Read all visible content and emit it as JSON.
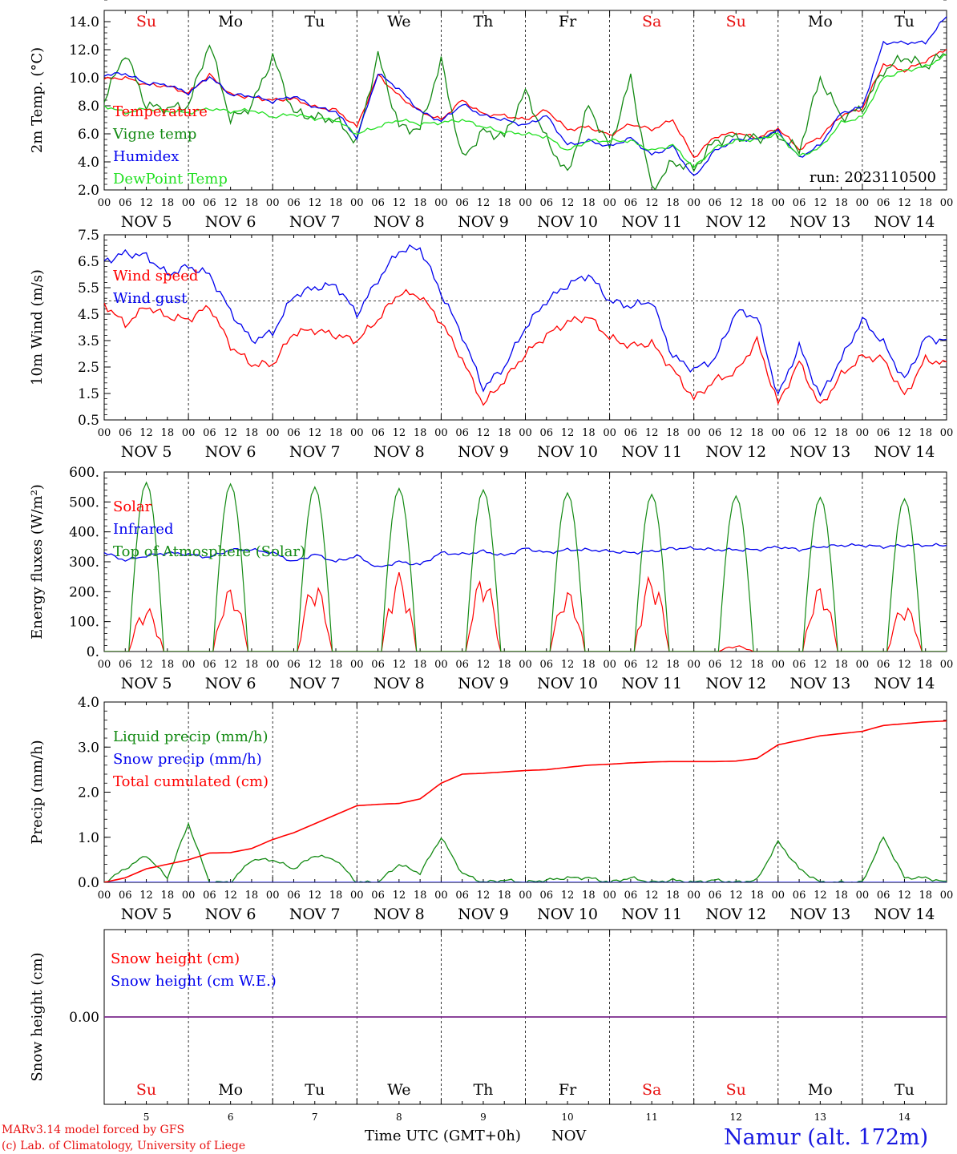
{
  "run_label": "run: 2023110500",
  "station": "Namur (alt. 172m)",
  "credit_line1": "MARv3.14 model forced by GFS",
  "credit_line2": "(c) Lab. of Climatology, University of Liege",
  "x_axis_label": "Time UTC (GMT+0h)",
  "x_axis_month": "NOV",
  "hour_ticks": [
    "00",
    "06",
    "12",
    "18"
  ],
  "final_hour_tick": "00",
  "day_numbers": [
    "5",
    "6",
    "7",
    "8",
    "9",
    "10",
    "11",
    "12",
    "13",
    "14"
  ],
  "day_names": [
    "Su",
    "Mo",
    "Tu",
    "We",
    "Th",
    "Fr",
    "Sa",
    "Su",
    "Mo",
    "Tu"
  ],
  "weekend_flags": [
    true,
    false,
    false,
    false,
    false,
    false,
    true,
    true,
    false,
    false
  ],
  "colors": {
    "weekend": "#e81010",
    "weekday": "#000000",
    "temperature": "#ff0000",
    "vigne": "#138a13",
    "humidex": "#0000ee",
    "dewpoint": "#22e022",
    "station": "#1818e0",
    "snow_line": "#7b2a8c"
  },
  "chart_data": [
    {
      "type": "line",
      "ylabel": "2m Temp. (°C)",
      "ylim": [
        2,
        14.8
      ],
      "yticks": [
        "2.0",
        "4.0",
        "6.0",
        "8.0",
        "10.0",
        "12.0",
        "14.0"
      ],
      "x": "hours since Nov 5 00 UTC, one point every 6 h",
      "series": [
        {
          "name": "Temperature",
          "color": "#ff0000",
          "values": [
            9.9,
            10.0,
            9.5,
            9.4,
            8.9,
            10.2,
            8.8,
            8.6,
            8.4,
            8.5,
            7.9,
            7.7,
            6.5,
            10.2,
            8.7,
            7.6,
            7.0,
            8.4,
            7.4,
            7.3,
            7.0,
            7.7,
            6.3,
            6.5,
            5.9,
            6.7,
            6.3,
            7.0,
            4.3,
            5.8,
            6.1,
            5.7,
            6.4,
            4.9,
            5.8,
            7.3,
            7.8,
            11.0,
            10.5,
            11.2,
            12.1
          ]
        },
        {
          "name": "Vigne temp",
          "color": "#138a13",
          "values": [
            8.4,
            11.8,
            8.0,
            7.8,
            8.0,
            12.5,
            7.0,
            8.0,
            11.5,
            7.5,
            7.2,
            7.0,
            5.4,
            11.6,
            6.5,
            6.3,
            11.2,
            4.2,
            6.2,
            5.8,
            9.0,
            5.6,
            3.1,
            8.0,
            5.0,
            10.0,
            2.0,
            4.0,
            3.5,
            5.5,
            5.8,
            5.7,
            5.9,
            4.8,
            10.0,
            7.2,
            7.8,
            10.5,
            11.5,
            10.8,
            11.8
          ]
        },
        {
          "name": "Humidex",
          "color": "#0000ee",
          "values": [
            10.2,
            10.3,
            9.6,
            9.5,
            8.9,
            10.1,
            8.8,
            8.7,
            8.3,
            8.7,
            7.9,
            7.6,
            5.7,
            10.3,
            9.2,
            7.6,
            6.9,
            8.1,
            7.3,
            7.0,
            6.6,
            7.3,
            5.2,
            5.5,
            5.1,
            5.7,
            4.5,
            5.1,
            2.9,
            4.8,
            5.6,
            5.6,
            6.2,
            4.3,
            5.2,
            7.5,
            7.9,
            12.5,
            12.5,
            12.5,
            14.4
          ]
        },
        {
          "name": "DewPoint Temp",
          "color": "#22e022",
          "values": [
            8.0,
            7.5,
            7.8,
            7.6,
            7.5,
            7.8,
            7.6,
            7.7,
            7.2,
            7.4,
            7.1,
            7.0,
            6.0,
            6.5,
            7.0,
            6.7,
            6.8,
            7.0,
            6.5,
            6.1,
            6.0,
            5.8,
            4.8,
            5.5,
            5.5,
            5.5,
            4.8,
            5.2,
            3.6,
            5.0,
            5.5,
            5.6,
            6.0,
            4.4,
            5.0,
            6.8,
            7.2,
            10.0,
            10.5,
            10.8,
            11.6
          ]
        }
      ]
    },
    {
      "type": "line",
      "ylabel": "10m Wind (m/s)",
      "ylim": [
        0.5,
        7.5
      ],
      "yticks": [
        "0.5",
        "1.5",
        "2.5",
        "3.5",
        "4.5",
        "5.5",
        "6.5",
        "7.5"
      ],
      "reference_line": 5.0,
      "series": [
        {
          "name": "Wind speed",
          "color": "#ff0000",
          "values": [
            4.9,
            4.1,
            4.8,
            4.4,
            4.3,
            4.8,
            3.3,
            2.6,
            2.6,
            3.8,
            3.9,
            3.7,
            3.5,
            4.3,
            5.3,
            5.2,
            4.2,
            2.8,
            1.1,
            2.0,
            3.0,
            3.7,
            4.2,
            4.4,
            3.6,
            3.3,
            3.4,
            2.4,
            1.3,
            2.0,
            2.3,
            3.5,
            1.1,
            2.7,
            1.0,
            2.2,
            2.9,
            2.8,
            1.4,
            2.8,
            2.6
          ]
        },
        {
          "name": "Wind gust",
          "color": "#0000ee",
          "values": [
            6.5,
            6.8,
            6.7,
            6.0,
            6.3,
            6.0,
            4.6,
            3.5,
            3.8,
            5.2,
            5.5,
            5.6,
            4.5,
            5.8,
            6.9,
            7.0,
            5.3,
            3.7,
            1.7,
            2.5,
            4.0,
            5.0,
            5.6,
            6.0,
            5.0,
            4.8,
            5.0,
            2.9,
            2.4,
            2.8,
            4.6,
            4.4,
            1.4,
            3.3,
            1.4,
            2.8,
            4.3,
            3.4,
            2.0,
            3.6,
            3.5
          ]
        }
      ]
    },
    {
      "type": "line",
      "ylabel": "Energy fluxes (W/m²)",
      "ylim": [
        0,
        600
      ],
      "yticks": [
        "0.",
        "100.",
        "200.",
        "300.",
        "400.",
        "500.",
        "600."
      ],
      "series": [
        {
          "name": "Solar",
          "color": "#ff0000",
          "peaks": [
            150,
            215,
            235,
            265,
            260,
            205,
            260,
            20,
            220,
            160
          ]
        },
        {
          "name": "Infrared",
          "color": "#0000ee",
          "values": [
            330,
            305,
            320,
            330,
            325,
            315,
            340,
            340,
            330,
            300,
            325,
            300,
            320,
            280,
            300,
            290,
            330,
            325,
            335,
            320,
            345,
            330,
            340,
            340,
            335,
            330,
            335,
            345,
            345,
            340,
            340,
            340,
            350,
            340,
            350,
            355,
            355,
            350,
            355,
            355,
            355
          ]
        },
        {
          "name": "Top of Atmosphere (Solar)",
          "color": "#138a13",
          "peaks": [
            565,
            560,
            550,
            545,
            540,
            530,
            525,
            520,
            515,
            510
          ]
        }
      ]
    },
    {
      "type": "line",
      "ylabel": "Precip (mm/h)",
      "ylim": [
        0,
        4
      ],
      "yticks": [
        "0.0",
        "1.0",
        "2.0",
        "3.0",
        "4.0"
      ],
      "series": [
        {
          "name": "Liquid precip (mm/h)",
          "color": "#138a13",
          "values": [
            0.0,
            0.3,
            0.6,
            0.1,
            1.3,
            0.0,
            0.0,
            0.5,
            0.5,
            0.3,
            0.6,
            0.5,
            0.0,
            0.0,
            0.4,
            0.2,
            1.0,
            0.2,
            0.0,
            0.05,
            0.0,
            0.05,
            0.1,
            0.1,
            0.0,
            0.1,
            0.0,
            0.05,
            0.0,
            0.05,
            0.0,
            0.05,
            0.9,
            0.3,
            0.0,
            0.0,
            0.0,
            1.0,
            0.1,
            0.1,
            0.0
          ]
        },
        {
          "name": "Snow precip (mm/h)",
          "color": "#0000ee",
          "values": [
            0,
            0,
            0,
            0,
            0,
            0,
            0,
            0,
            0,
            0,
            0,
            0,
            0,
            0,
            0,
            0,
            0,
            0,
            0,
            0,
            0,
            0,
            0,
            0,
            0,
            0,
            0,
            0,
            0,
            0,
            0,
            0,
            0,
            0,
            0,
            0,
            0,
            0,
            0,
            0,
            0
          ]
        },
        {
          "name": "Total cumulated (cm)",
          "color": "#ff0000",
          "values": [
            0.0,
            0.1,
            0.3,
            0.4,
            0.5,
            0.65,
            0.66,
            0.75,
            0.95,
            1.1,
            1.3,
            1.5,
            1.7,
            1.73,
            1.75,
            1.85,
            2.2,
            2.4,
            2.42,
            2.45,
            2.48,
            2.5,
            2.55,
            2.6,
            2.62,
            2.65,
            2.67,
            2.68,
            2.68,
            2.68,
            2.69,
            2.75,
            3.05,
            3.15,
            3.25,
            3.3,
            3.35,
            3.48,
            3.52,
            3.56,
            3.58
          ]
        }
      ]
    },
    {
      "type": "line",
      "ylabel": "Snow height (cm)",
      "ylim": [
        -1,
        1
      ],
      "yticks": [
        "0.00"
      ],
      "series": [
        {
          "name": "Snow height (cm)",
          "color": "#ff0000",
          "values": [
            0,
            0
          ]
        },
        {
          "name": "Snow height (cm W.E.)",
          "color": "#0000ee",
          "values": [
            0,
            0
          ]
        }
      ]
    }
  ]
}
